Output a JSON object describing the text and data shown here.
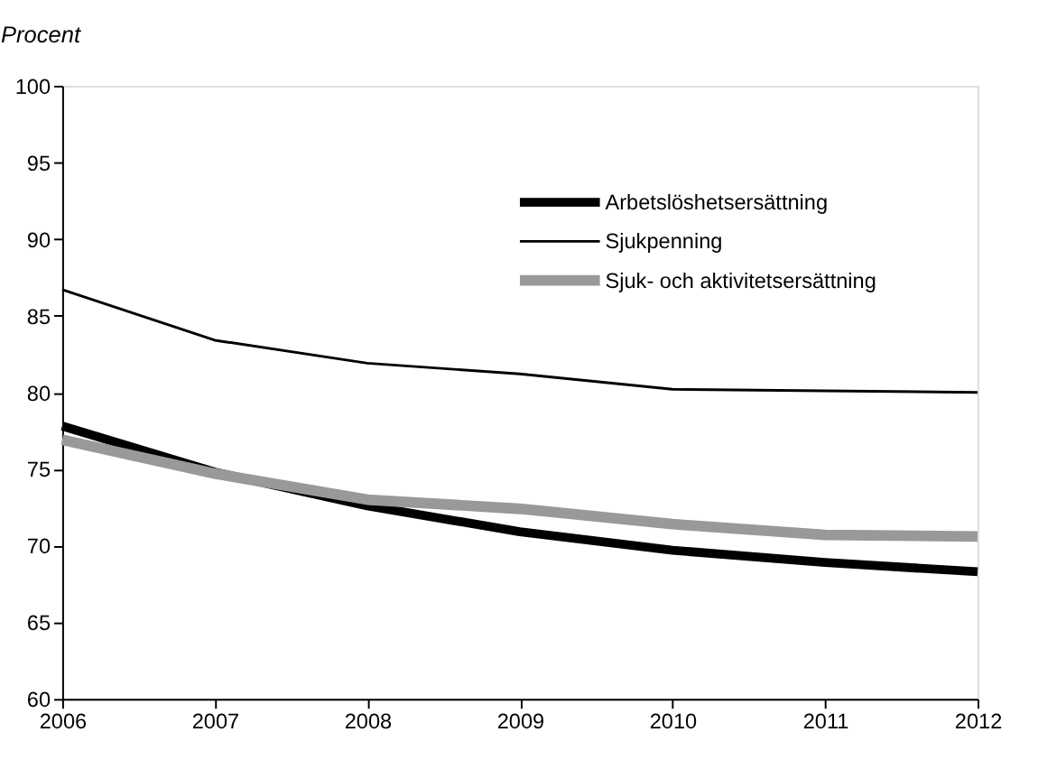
{
  "chart_data": {
    "type": "line",
    "ylabel": "Procent",
    "x": [
      2006,
      2007,
      2008,
      2009,
      2010,
      2011,
      2012
    ],
    "series": [
      {
        "name": "Arbetslöshetsersättning",
        "color": "#000000",
        "values": [
          77.8,
          74.8,
          72.6,
          70.9,
          69.7,
          68.9,
          68.3
        ]
      },
      {
        "name": "Sjukpenning",
        "color": "#000000",
        "values": [
          86.7,
          83.4,
          81.9,
          81.2,
          80.2,
          80.1,
          80.0
        ]
      },
      {
        "name": "Sjuk- och aktivitetsersättning",
        "color": "#999999",
        "values": [
          76.9,
          74.7,
          73.0,
          72.4,
          71.4,
          70.7,
          70.6
        ]
      }
    ],
    "xlim": [
      2006,
      2012
    ],
    "xticks": [
      2006,
      2007,
      2008,
      2009,
      2010,
      2011,
      2012
    ],
    "ylim": [
      60,
      100
    ],
    "yticks": [
      60,
      65,
      70,
      75,
      80,
      85,
      90,
      95,
      100
    ],
    "grid": false,
    "legend": "top right",
    "marker": "none",
    "line_style": "solid"
  }
}
